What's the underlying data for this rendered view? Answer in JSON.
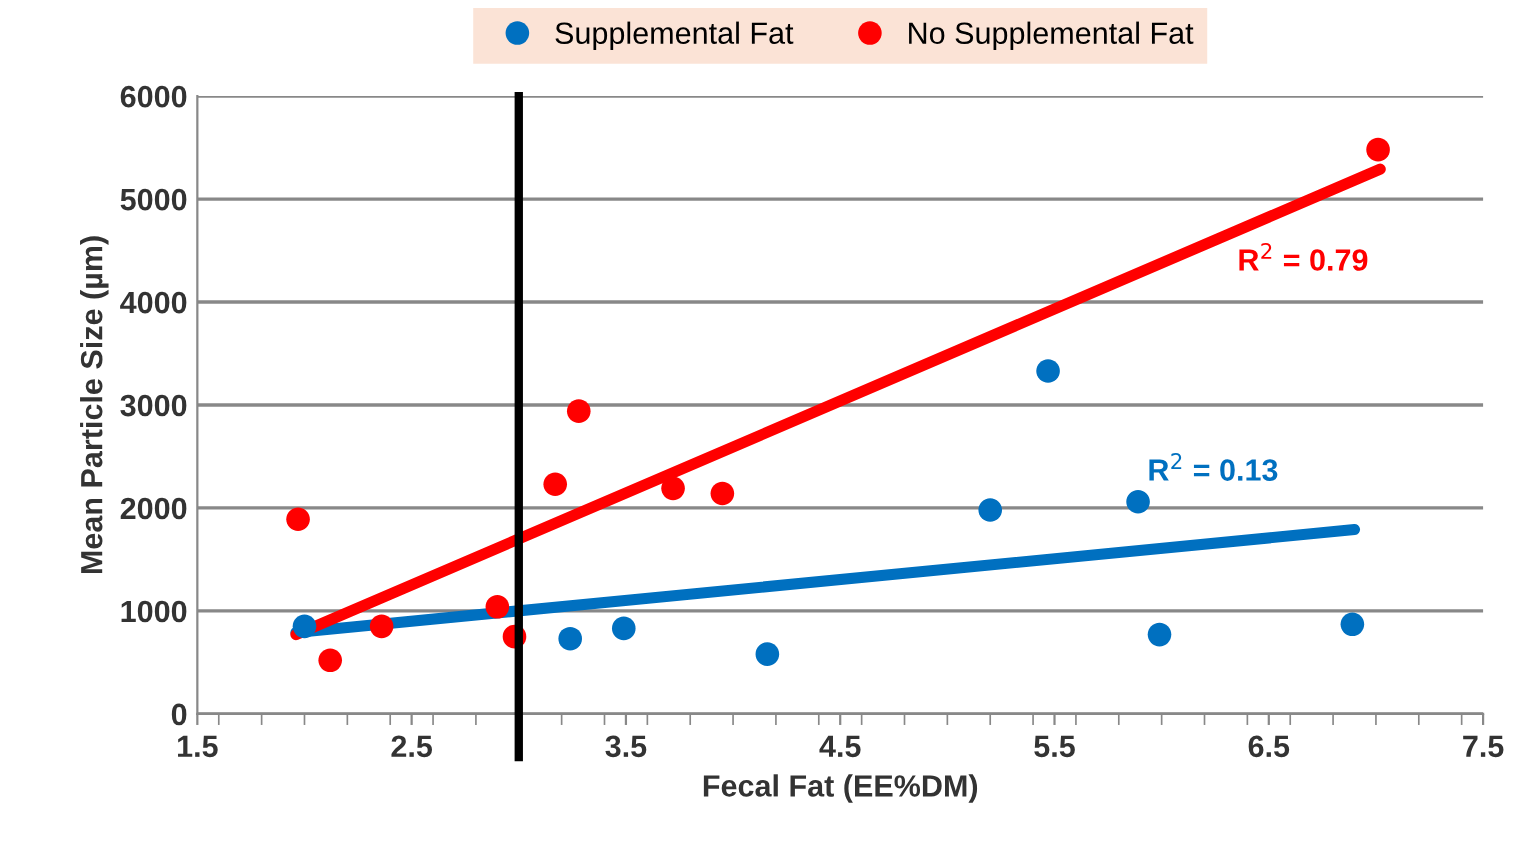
{
  "chart_data": {
    "type": "scatter",
    "xlabel": "Fecal Fat (EE%DM)",
    "ylabel": "Mean Particle Size (µm)",
    "xlim": [
      1.5,
      7.5
    ],
    "xticks": [
      1.5,
      2.5,
      3.5,
      4.5,
      5.5,
      6.5,
      7.5
    ],
    "ylim": [
      0,
      6000
    ],
    "yticks": [
      0,
      1000,
      2000,
      3000,
      4000,
      5000,
      6000
    ],
    "grid": "y",
    "legend": "top",
    "marker": "circle",
    "series": [
      {
        "name": "Supplemental Fat",
        "color": "#0070c0",
        "x": [
          2.0,
          3.24,
          3.49,
          4.16,
          5.2,
          5.47,
          5.89,
          5.99,
          6.89
        ],
        "values": [
          850,
          730,
          830,
          580,
          1980,
          3330,
          2060,
          770,
          870
        ]
      },
      {
        "name": "No Supplemental Fat",
        "color": "#ff0000",
        "x": [
          1.97,
          2.12,
          2.36,
          2.9,
          2.98,
          3.17,
          3.28,
          3.72,
          3.95,
          7.01
        ],
        "values": [
          1890,
          520,
          850,
          1040,
          750,
          2230,
          2940,
          2190,
          2140,
          5480
        ]
      },
      {
        "type": "line",
        "marker": "none",
        "color": "#0070c0",
        "x": [
          1.96,
          6.9
        ],
        "values": [
          790,
          1790
        ]
      },
      {
        "type": "line",
        "marker": "none",
        "color": "#ff0000",
        "x": [
          1.96,
          7.02
        ],
        "values": [
          770,
          5290
        ]
      }
    ],
    "ref_lines": [
      {
        "axis": "x",
        "value": 3.0,
        "color": "#000000",
        "line_style": "solid"
      }
    ],
    "annotations": [
      "R$^{2}$ = 0.79",
      "R$^{2}$ = 0.13"
    ]
  }
}
